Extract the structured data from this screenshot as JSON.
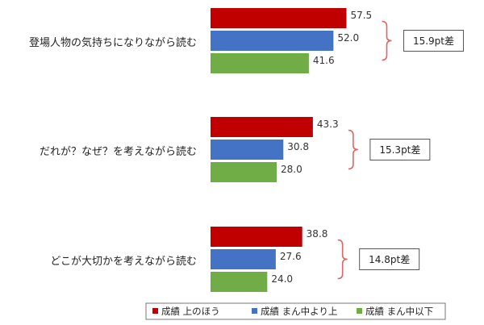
{
  "chart_data": {
    "type": "bar",
    "orientation": "horizontal",
    "categories": [
      "登場人物の気持ちになりながら読む",
      "だれが？なぜ？を考えながら読む",
      "どこが大切かを考えながら読む"
    ],
    "series": [
      {
        "name": "成績 上のほう",
        "color": "#c00000",
        "values": [
          57.5,
          43.3,
          38.8
        ]
      },
      {
        "name": "成績 まん中より上",
        "color": "#4472c4",
        "values": [
          52.0,
          30.8,
          27.6
        ]
      },
      {
        "name": "成績 まん中以下",
        "color": "#70ad47",
        "values": [
          41.6,
          28.0,
          24.0
        ]
      }
    ],
    "value_labels": [
      [
        "57.5",
        "43.3",
        "38.8"
      ],
      [
        "52.0",
        "30.8",
        "27.6"
      ],
      [
        "41.6",
        "28.0",
        "24.0"
      ]
    ],
    "differences": [
      "15.9pt差",
      "15.3pt差",
      "14.8pt差"
    ],
    "legend_position": "bottom",
    "grid": false,
    "bracket_color": "#e06666"
  }
}
